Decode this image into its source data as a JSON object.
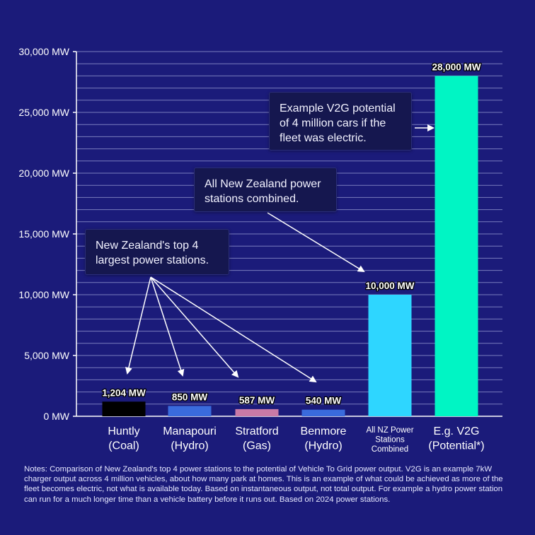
{
  "chart_data": {
    "type": "bar",
    "categories": [
      {
        "line1": "Huntly",
        "line2": "(Coal)",
        "line3": ""
      },
      {
        "line1": "Manapouri",
        "line2": "(Hydro)",
        "line3": ""
      },
      {
        "line1": "Stratford",
        "line2": "(Gas)",
        "line3": ""
      },
      {
        "line1": "Benmore",
        "line2": "(Hydro)",
        "line3": ""
      },
      {
        "line1": "All NZ Power",
        "line2": "Stations",
        "line3": "Combined"
      },
      {
        "line1": "E.g. V2G",
        "line2": "(Potential*)",
        "line3": ""
      }
    ],
    "values": [
      1204,
      850,
      587,
      540,
      10000,
      28000
    ],
    "value_labels": [
      "1,204 MW",
      "850 MW",
      "587 MW",
      "540 MW",
      "10,000 MW",
      "28,000 MW"
    ],
    "colors": [
      "#000000",
      "#3a6bdc",
      "#c97aa6",
      "#3a6bdc",
      "#2ed6ff",
      "#00f5c4"
    ],
    "ylim": [
      0,
      30000
    ],
    "yticks": [
      0,
      5000,
      10000,
      15000,
      20000,
      25000,
      30000
    ],
    "ytick_labels": [
      "0 MW",
      "5,000 MW",
      "10,000 MW",
      "15,000 MW",
      "20,000 MW",
      "25,000 MW",
      "30,000 MW"
    ],
    "grid_step": 1000,
    "grid": true,
    "colors_style": {
      "background": "#1b1b7a",
      "grid": "#7a7cbe",
      "axis": "#ffffff"
    }
  },
  "callouts": {
    "top4": [
      "New Zealand's top 4",
      "largest power stations."
    ],
    "all_nz": [
      "All New Zealand power",
      "stations combined."
    ],
    "v2g": [
      "Example V2G potential",
      "of 4 million cars if the",
      "fleet was electric."
    ]
  },
  "notes": "Notes: Comparison of New Zealand's top 4 power stations to the potential of Vehicle To Grid power output. V2G is an example 7kW charger output across 4 million vehicles, about how many park at homes. This is an example of what could be achieved as more of the fleet becomes electric, not what is available today. Based on instantaneous output, not total output. For example a hydro power station can run for a much longer time than a vehicle battery before it runs out. Based on 2024 power stations."
}
